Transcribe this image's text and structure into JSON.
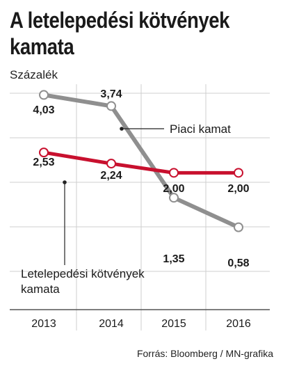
{
  "title": "A letelepedési kötvények kamata",
  "unit_label": "Százalék",
  "source": "Forrás: Bloomberg / MN-grafika",
  "colors": {
    "market": "#8f8f8f",
    "bond": "#c8102e",
    "grid": "#cfcfcf",
    "text": "#1a1a1a"
  },
  "chart_data": {
    "type": "line",
    "categories": [
      "2013",
      "2014",
      "2015",
      "2016"
    ],
    "ylabel": "Százalék",
    "grid": true,
    "series": [
      {
        "name": "Piaci kamat",
        "values": [
          4.03,
          3.74,
          1.35,
          0.58
        ],
        "labels": [
          "4,03",
          "3,74",
          "1,35",
          "0,58"
        ]
      },
      {
        "name": "Letelepedési kötvények kamata",
        "values": [
          2.53,
          2.24,
          2.0,
          2.0
        ],
        "labels": [
          "2,53",
          "2,24",
          "2,00",
          "2,00"
        ]
      }
    ]
  }
}
